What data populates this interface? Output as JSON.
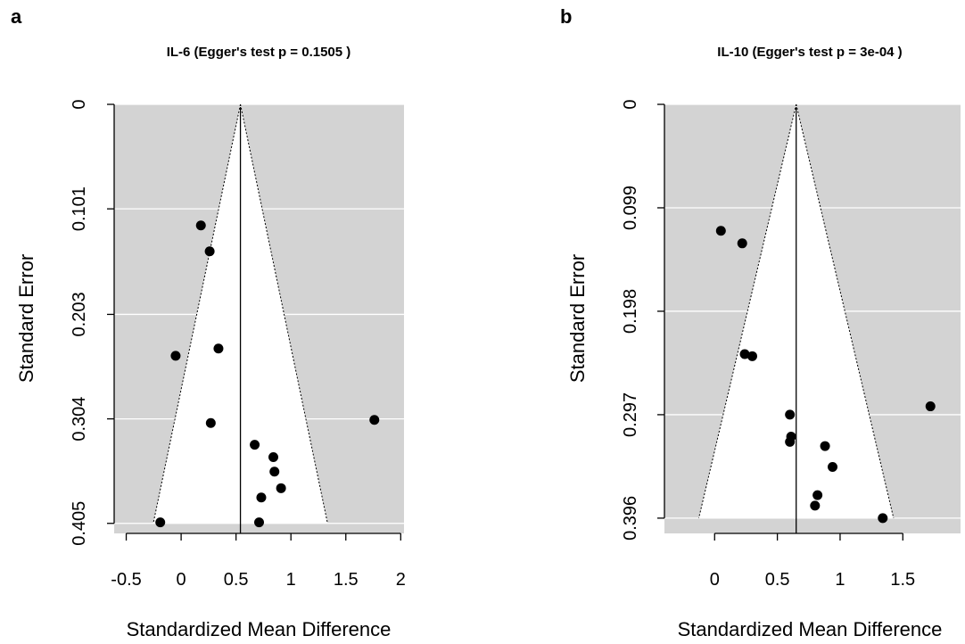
{
  "chart_data": [
    {
      "type": "scatter",
      "panel": "a",
      "title": "IL-6 (Egger's test p = 0.1505 )",
      "xlabel": "Standardized Mean Difference",
      "ylabel": "Standard Error",
      "x_ticks": [
        "-0.5",
        "0",
        "0.5",
        "1",
        "1.5",
        "2"
      ],
      "x_tick_values": [
        -0.5,
        0,
        0.5,
        1,
        1.5,
        2
      ],
      "y_ticks": [
        "0",
        "0.101",
        "0.203",
        "0.304",
        "0.405"
      ],
      "y_tick_values": [
        0,
        0.101,
        0.203,
        0.304,
        0.405
      ],
      "xlim": [
        -0.61,
        2.03
      ],
      "ylim": [
        0.4147,
        0.0
      ],
      "y_reversed": true,
      "pooled_estimate": 0.54,
      "funnel_se_max": 0.405,
      "points": [
        {
          "x": 0.18,
          "y": 0.117
        },
        {
          "x": 0.26,
          "y": 0.142
        },
        {
          "x": -0.05,
          "y": 0.243
        },
        {
          "x": 0.34,
          "y": 0.236
        },
        {
          "x": 0.27,
          "y": 0.308
        },
        {
          "x": 1.76,
          "y": 0.305
        },
        {
          "x": 0.67,
          "y": 0.329
        },
        {
          "x": 0.84,
          "y": 0.341
        },
        {
          "x": 0.85,
          "y": 0.355
        },
        {
          "x": 0.91,
          "y": 0.371
        },
        {
          "x": 0.73,
          "y": 0.38
        },
        {
          "x": 0.71,
          "y": 0.404
        },
        {
          "x": -0.19,
          "y": 0.404
        }
      ]
    },
    {
      "type": "scatter",
      "panel": "b",
      "title": "IL-10 (Egger's test p = 3e-04 )",
      "xlabel": "Standardized Mean Difference",
      "ylabel": "Standard Error",
      "x_ticks": [
        "0",
        "0.5",
        "1",
        "1.5"
      ],
      "x_tick_values": [
        0,
        0.5,
        1,
        1.5
      ],
      "y_ticks": [
        "0",
        "0.099",
        "0.198",
        "0.297",
        "0.396"
      ],
      "y_tick_values": [
        0,
        0.099,
        0.198,
        0.297,
        0.396
      ],
      "xlim": [
        -0.4,
        1.96
      ],
      "ylim": [
        0.4106,
        0.0
      ],
      "y_reversed": true,
      "pooled_estimate": 0.65,
      "funnel_se_max": 0.396,
      "points": [
        {
          "x": 0.05,
          "y": 0.121
        },
        {
          "x": 0.22,
          "y": 0.133
        },
        {
          "x": 0.24,
          "y": 0.239
        },
        {
          "x": 0.3,
          "y": 0.241
        },
        {
          "x": 0.6,
          "y": 0.297
        },
        {
          "x": 1.72,
          "y": 0.289
        },
        {
          "x": 0.61,
          "y": 0.318
        },
        {
          "x": 0.6,
          "y": 0.323
        },
        {
          "x": 0.88,
          "y": 0.327
        },
        {
          "x": 0.94,
          "y": 0.347
        },
        {
          "x": 0.82,
          "y": 0.374
        },
        {
          "x": 0.8,
          "y": 0.384
        },
        {
          "x": 1.34,
          "y": 0.396
        }
      ]
    }
  ]
}
